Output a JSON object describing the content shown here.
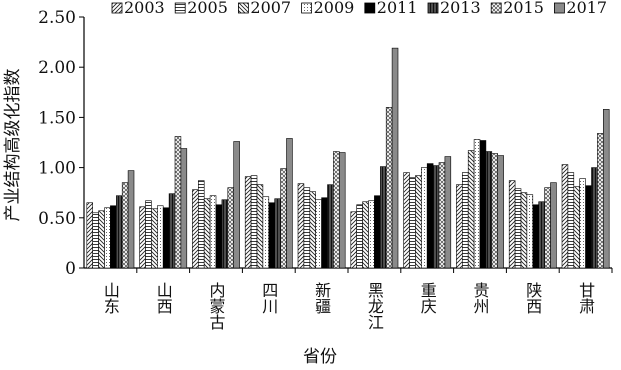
{
  "chart_data": {
    "type": "bar",
    "xlabel": "省份",
    "ylabel": "产业结构高级化指数",
    "ylim": [
      0,
      2.5
    ],
    "yticks": [
      "0",
      "0.50",
      "1.00",
      "1.50",
      "2.00",
      "2.50"
    ],
    "categories": [
      "山东",
      "山西",
      "内蒙古",
      "四川",
      "新疆",
      "黑龙江",
      "重庆",
      "贵州",
      "陕西",
      "甘肃"
    ],
    "legend_position": "top",
    "series": [
      {
        "name": "2003",
        "pattern": "diag-up",
        "values": [
          0.65,
          0.61,
          0.78,
          0.91,
          0.84,
          0.56,
          0.95,
          0.83,
          0.87,
          1.03
        ]
      },
      {
        "name": "2005",
        "pattern": "horiz",
        "values": [
          0.55,
          0.67,
          0.87,
          0.92,
          0.8,
          0.63,
          0.9,
          0.95,
          0.79,
          0.95
        ]
      },
      {
        "name": "2007",
        "pattern": "diag-down",
        "values": [
          0.57,
          0.59,
          0.69,
          0.83,
          0.76,
          0.66,
          0.92,
          1.17,
          0.75,
          0.81
        ]
      },
      {
        "name": "2009",
        "pattern": "dots",
        "values": [
          0.6,
          0.62,
          0.72,
          0.71,
          0.68,
          0.67,
          1.0,
          1.28,
          0.73,
          0.89
        ]
      },
      {
        "name": "2011",
        "pattern": "solid",
        "values": [
          0.62,
          0.6,
          0.63,
          0.65,
          0.7,
          0.72,
          1.04,
          1.27,
          0.63,
          0.82
        ]
      },
      {
        "name": "2013",
        "pattern": "vert",
        "values": [
          0.72,
          0.74,
          0.68,
          0.69,
          0.83,
          1.01,
          1.02,
          1.16,
          0.66,
          1.0
        ]
      },
      {
        "name": "2015",
        "pattern": "cross",
        "values": [
          0.85,
          1.31,
          0.8,
          0.99,
          1.16,
          1.6,
          1.05,
          1.14,
          0.8,
          1.34
        ]
      },
      {
        "name": "2017",
        "pattern": "gray",
        "values": [
          0.97,
          1.19,
          1.26,
          1.29,
          1.15,
          2.19,
          1.11,
          1.12,
          0.85,
          1.58
        ]
      }
    ],
    "extra_2017_note": "",
    "grid": false
  }
}
